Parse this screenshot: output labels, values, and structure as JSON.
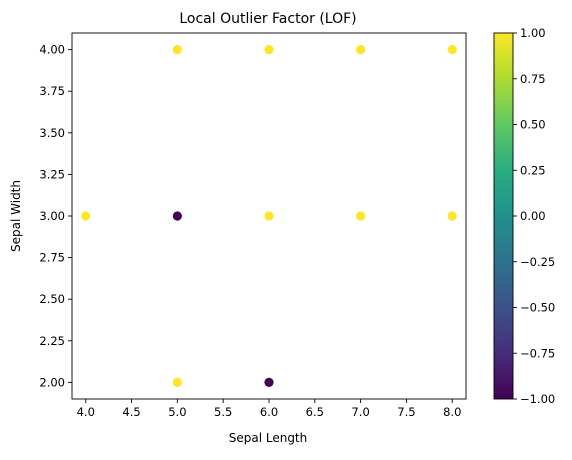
{
  "chart_data": {
    "type": "scatter",
    "title": "Local Outlier Factor (LOF)",
    "xlabel": "Sepal Length",
    "ylabel": "Sepal Width",
    "xlim": [
      3.85,
      8.15
    ],
    "ylim": [
      1.9,
      4.1
    ],
    "xticks": [
      4.0,
      4.5,
      5.0,
      5.5,
      6.0,
      6.5,
      7.0,
      7.5,
      8.0
    ],
    "xtick_labels": [
      "4.0",
      "4.5",
      "5.0",
      "5.5",
      "6.0",
      "6.5",
      "7.0",
      "7.5",
      "8.0"
    ],
    "yticks": [
      2.0,
      2.25,
      2.5,
      2.75,
      3.0,
      3.25,
      3.5,
      3.75,
      4.0
    ],
    "ytick_labels": [
      "2.00",
      "2.25",
      "2.50",
      "2.75",
      "3.00",
      "3.25",
      "3.50",
      "3.75",
      "4.00"
    ],
    "grid": false,
    "points": [
      {
        "x": 5,
        "y": 4,
        "label": 1
      },
      {
        "x": 6,
        "y": 4,
        "label": 1
      },
      {
        "x": 7,
        "y": 4,
        "label": 1
      },
      {
        "x": 8,
        "y": 4,
        "label": 1
      },
      {
        "x": 4,
        "y": 3,
        "label": 1
      },
      {
        "x": 5,
        "y": 3,
        "label": -1
      },
      {
        "x": 6,
        "y": 3,
        "label": 1
      },
      {
        "x": 7,
        "y": 3,
        "label": 1
      },
      {
        "x": 8,
        "y": 3,
        "label": 1
      },
      {
        "x": 5,
        "y": 2,
        "label": 1
      },
      {
        "x": 6,
        "y": 2,
        "label": -1
      }
    ],
    "colormap": "viridis",
    "colors": {
      "inlier": "#fde725",
      "outlier": "#440154"
    },
    "colorbar": {
      "range": [
        -1.0,
        1.0
      ],
      "ticks": [
        -1.0,
        -0.75,
        -0.5,
        -0.25,
        0.0,
        0.25,
        0.5,
        0.75,
        1.0
      ],
      "tick_labels": [
        "−1.00",
        "−0.75",
        "−0.50",
        "−0.25",
        "0.00",
        "0.25",
        "0.50",
        "0.75",
        "1.00"
      ]
    }
  }
}
